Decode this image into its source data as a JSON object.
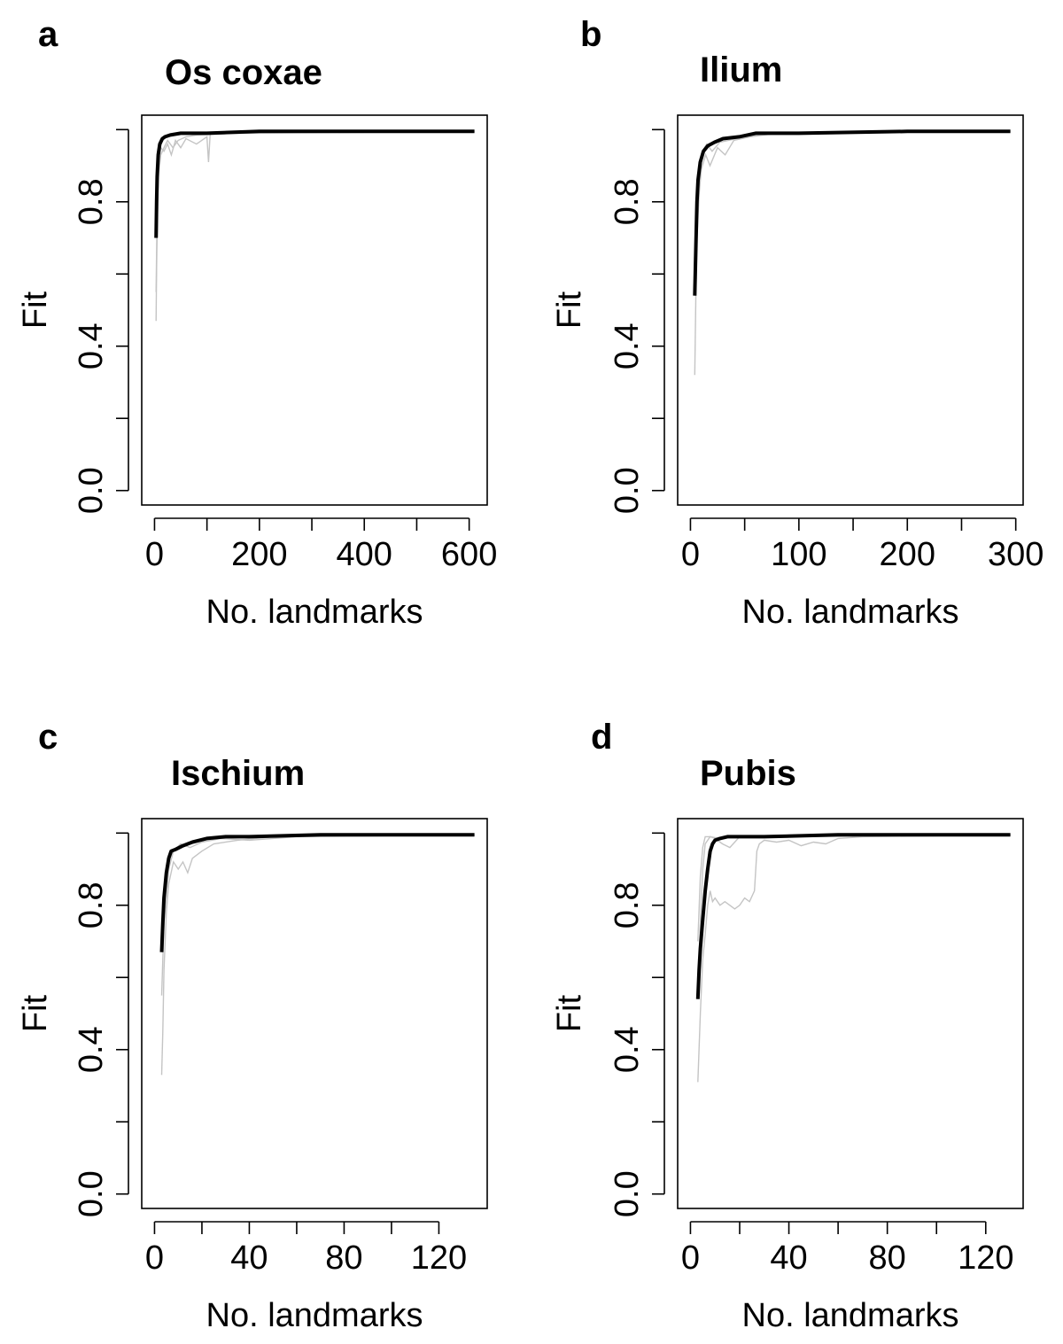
{
  "chart_data": [
    {
      "type": "line",
      "panel_letter": "a",
      "title": "Os coxae",
      "xlabel": "No. landmarks",
      "ylabel": "Fit",
      "xlim": [
        0,
        610
      ],
      "ylim": [
        0,
        1.0
      ],
      "x_ticks": [
        0,
        100,
        200,
        300,
        400,
        500,
        600
      ],
      "x_tick_labels": [
        "0",
        "",
        "200",
        "",
        "400",
        "",
        "600"
      ],
      "y_ticks": [
        0,
        0.2,
        0.4,
        0.6,
        0.8,
        1.0
      ],
      "y_tick_labels": [
        "0.0",
        "",
        "0.4",
        "",
        "0.8",
        ""
      ],
      "grid": false,
      "series": [
        {
          "style": "mean",
          "color": "#000000",
          "x": [
            3,
            4,
            5,
            7,
            10,
            15,
            20,
            30,
            50,
            100,
            200,
            400,
            610
          ],
          "y": [
            0.7,
            0.8,
            0.87,
            0.93,
            0.96,
            0.975,
            0.98,
            0.985,
            0.99,
            0.99,
            0.995,
            0.995,
            0.995
          ]
        },
        {
          "style": "replicate",
          "color": "#c4c4c4",
          "x": [
            3,
            4,
            6,
            8,
            12,
            18,
            25,
            32,
            40,
            50,
            60,
            80,
            100,
            103,
            106,
            110,
            150,
            610
          ],
          "y": [
            0.47,
            0.62,
            0.8,
            0.9,
            0.95,
            0.94,
            0.96,
            0.93,
            0.97,
            0.95,
            0.975,
            0.96,
            0.98,
            0.91,
            0.985,
            0.99,
            0.995,
            0.995
          ]
        },
        {
          "style": "replicate",
          "color": "#c4c4c4",
          "x": [
            3,
            5,
            8,
            12,
            18,
            25,
            35,
            45,
            60,
            80,
            150,
            610
          ],
          "y": [
            0.55,
            0.78,
            0.88,
            0.93,
            0.95,
            0.97,
            0.95,
            0.97,
            0.98,
            0.985,
            0.99,
            0.995
          ]
        }
      ]
    },
    {
      "type": "line",
      "panel_letter": "b",
      "title": "Ilium",
      "xlabel": "No. landmarks",
      "ylabel": "Fit",
      "xlim": [
        0,
        295
      ],
      "ylim": [
        0,
        1.0
      ],
      "x_ticks": [
        0,
        50,
        100,
        150,
        200,
        250,
        300
      ],
      "x_tick_labels": [
        "0",
        "",
        "100",
        "",
        "200",
        "",
        "300"
      ],
      "y_ticks": [
        0,
        0.2,
        0.4,
        0.6,
        0.8,
        1.0
      ],
      "y_tick_labels": [
        "0.0",
        "",
        "0.4",
        "",
        "0.8",
        ""
      ],
      "grid": false,
      "series": [
        {
          "style": "mean",
          "color": "#000000",
          "x": [
            4,
            5,
            6,
            7,
            9,
            12,
            16,
            22,
            30,
            45,
            60,
            100,
            200,
            295
          ],
          "y": [
            0.54,
            0.68,
            0.8,
            0.86,
            0.91,
            0.94,
            0.955,
            0.965,
            0.975,
            0.98,
            0.99,
            0.99,
            0.995,
            0.995
          ]
        },
        {
          "style": "replicate",
          "color": "#c4c4c4",
          "x": [
            4,
            5,
            6,
            8,
            10,
            14,
            18,
            25,
            32,
            40,
            55,
            80,
            295
          ],
          "y": [
            0.32,
            0.55,
            0.7,
            0.82,
            0.89,
            0.93,
            0.9,
            0.95,
            0.93,
            0.97,
            0.98,
            0.99,
            0.995
          ]
        },
        {
          "style": "replicate",
          "color": "#c4c4c4",
          "x": [
            4,
            6,
            8,
            11,
            15,
            20,
            27,
            35,
            50,
            70,
            295
          ],
          "y": [
            0.6,
            0.8,
            0.88,
            0.94,
            0.96,
            0.94,
            0.965,
            0.97,
            0.98,
            0.99,
            0.995
          ]
        }
      ]
    },
    {
      "type": "line",
      "panel_letter": "c",
      "title": "Ischium",
      "xlabel": "No. landmarks",
      "ylabel": "Fit",
      "xlim": [
        0,
        135
      ],
      "ylim": [
        0,
        1.0
      ],
      "x_ticks": [
        0,
        20,
        40,
        60,
        80,
        100,
        120
      ],
      "x_tick_labels": [
        "0",
        "",
        "40",
        "",
        "80",
        "",
        "120"
      ],
      "y_ticks": [
        0,
        0.2,
        0.4,
        0.6,
        0.8,
        1.0
      ],
      "y_tick_labels": [
        "0.0",
        "",
        "0.4",
        "",
        "0.8",
        ""
      ],
      "grid": false,
      "series": [
        {
          "style": "mean",
          "color": "#000000",
          "x": [
            3,
            3.5,
            4,
            5,
            6,
            7,
            9,
            12,
            16,
            22,
            30,
            40,
            70,
            100,
            135
          ],
          "y": [
            0.67,
            0.75,
            0.82,
            0.89,
            0.93,
            0.95,
            0.955,
            0.965,
            0.975,
            0.985,
            0.99,
            0.99,
            0.995,
            0.995,
            0.995
          ]
        },
        {
          "style": "replicate",
          "color": "#c4c4c4",
          "x": [
            3,
            3.5,
            4,
            5,
            6,
            8,
            10,
            12,
            14,
            16,
            20,
            25,
            35,
            50,
            135
          ],
          "y": [
            0.33,
            0.45,
            0.62,
            0.78,
            0.86,
            0.92,
            0.9,
            0.92,
            0.89,
            0.93,
            0.95,
            0.97,
            0.98,
            0.99,
            0.995
          ]
        },
        {
          "style": "replicate",
          "color": "#c4c4c4",
          "x": [
            3,
            4,
            6,
            8,
            11,
            15,
            20,
            28,
            40,
            60,
            135
          ],
          "y": [
            0.55,
            0.75,
            0.9,
            0.95,
            0.97,
            0.96,
            0.975,
            0.985,
            0.98,
            0.99,
            0.995
          ]
        }
      ]
    },
    {
      "type": "line",
      "panel_letter": "d",
      "title": "Pubis",
      "xlabel": "No. landmarks",
      "ylabel": "Fit",
      "xlim": [
        0,
        130
      ],
      "ylim": [
        0,
        1.0
      ],
      "x_ticks": [
        0,
        20,
        40,
        60,
        80,
        100,
        120
      ],
      "x_tick_labels": [
        "0",
        "",
        "40",
        "",
        "80",
        "",
        "120"
      ],
      "y_ticks": [
        0,
        0.2,
        0.4,
        0.6,
        0.8,
        1.0
      ],
      "y_tick_labels": [
        "0.0",
        "",
        "0.4",
        "",
        "0.8",
        ""
      ],
      "grid": false,
      "series": [
        {
          "style": "mean",
          "color": "#000000",
          "x": [
            3,
            3.5,
            4,
            5,
            6,
            7,
            8,
            9,
            10,
            12,
            15,
            20,
            30,
            60,
            90,
            130
          ],
          "y": [
            0.54,
            0.62,
            0.68,
            0.76,
            0.84,
            0.9,
            0.95,
            0.97,
            0.98,
            0.985,
            0.99,
            0.99,
            0.99,
            0.995,
            0.995,
            0.995
          ]
        },
        {
          "style": "replicate",
          "color": "#c4c4c4",
          "x": [
            3,
            4,
            5,
            6,
            7,
            8,
            9,
            10,
            12,
            14,
            16,
            18,
            20,
            22,
            24,
            26,
            27,
            28,
            30,
            35,
            40,
            45,
            50,
            55,
            60,
            70,
            130
          ],
          "y": [
            0.31,
            0.5,
            0.65,
            0.72,
            0.8,
            0.84,
            0.81,
            0.82,
            0.8,
            0.81,
            0.8,
            0.79,
            0.8,
            0.82,
            0.81,
            0.84,
            0.95,
            0.97,
            0.98,
            0.975,
            0.98,
            0.965,
            0.975,
            0.97,
            0.985,
            0.99,
            0.995
          ]
        },
        {
          "style": "replicate",
          "color": "#c4c4c4",
          "x": [
            3,
            4,
            5,
            6,
            8,
            10,
            13,
            16,
            20,
            30,
            50,
            130
          ],
          "y": [
            0.55,
            0.75,
            0.9,
            0.97,
            0.99,
            0.985,
            0.97,
            0.96,
            0.99,
            0.99,
            0.995,
            0.995
          ]
        },
        {
          "style": "replicate",
          "color": "#c4c4c4",
          "x": [
            3,
            4,
            5,
            6,
            8,
            12,
            18,
            25,
            40,
            130
          ],
          "y": [
            0.7,
            0.88,
            0.96,
            0.99,
            0.99,
            0.985,
            0.99,
            0.99,
            0.99,
            0.995
          ]
        }
      ]
    }
  ]
}
